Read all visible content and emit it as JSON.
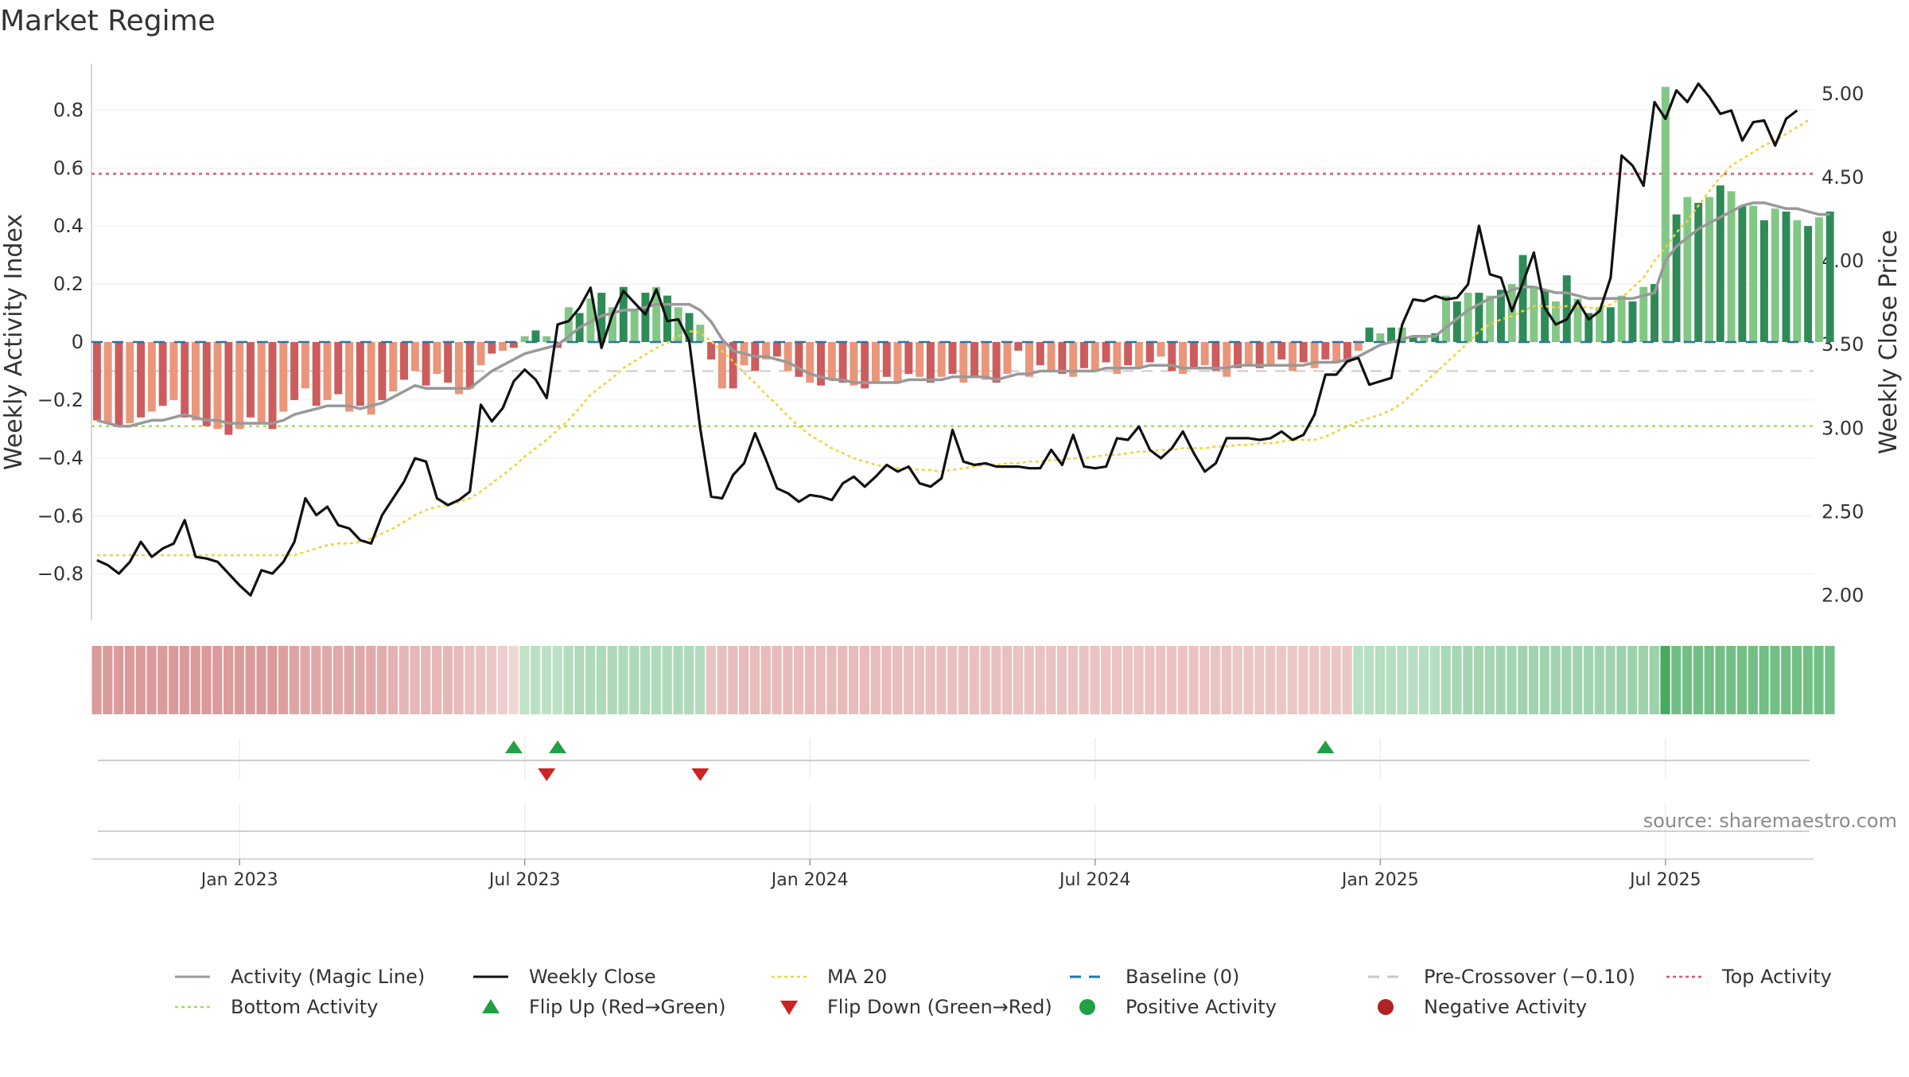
{
  "title": "Market Regime",
  "source_note": "source: sharemaestro.com",
  "colors": {
    "pos_dark": "#2e8b57",
    "pos_light": "#82c785",
    "neg_dark": "#cd5c5c",
    "neg_light": "#e9967a",
    "magic_line": "#999999",
    "close_line": "#111111",
    "ma_line": "#f0d23a",
    "baseline": "#1f77b4",
    "precross": "#c8c8c8",
    "top": "#e0566b",
    "bottom": "#a6d96a",
    "flip_up": "#22a045",
    "flip_down": "#cc2222"
  },
  "chart_data": {
    "type": "bar",
    "title": "Market Regime",
    "y_left_label": "Weekly Activity Index",
    "y_right_label": "Weekly Close Price",
    "y_left_range": [
      -0.96,
      0.96
    ],
    "y_right_range": [
      1.85,
      5.18
    ],
    "y_left_ticks": [
      "−0.8",
      "−0.6",
      "−0.4",
      "−0.2",
      "0",
      "0.2",
      "0.4",
      "0.6",
      "0.8"
    ],
    "y_right_ticks": [
      "2.00",
      "2.50",
      "3.00",
      "3.50",
      "4.00",
      "4.50",
      "5.00"
    ],
    "x_ticks": [
      "Jan 2023",
      "Jul 2023",
      "Jan 2024",
      "Jul 2024",
      "Jan 2025",
      "Jul 2025"
    ],
    "x_tick_weeks": [
      13,
      39,
      65,
      91,
      117,
      143
    ],
    "week_count": 157,
    "reference_lines": {
      "baseline": 0,
      "pre_crossover": -0.1,
      "top_activity": 0.58,
      "bottom_activity": -0.29
    },
    "series": [
      {
        "name": "Weekly Activity Index",
        "kind": "bar",
        "values": [
          -0.27,
          -0.28,
          -0.29,
          -0.28,
          -0.26,
          -0.24,
          -0.22,
          -0.2,
          -0.26,
          -0.27,
          -0.29,
          -0.3,
          -0.32,
          -0.3,
          -0.26,
          -0.28,
          -0.3,
          -0.24,
          -0.2,
          -0.16,
          -0.22,
          -0.2,
          -0.18,
          -0.24,
          -0.22,
          -0.25,
          -0.2,
          -0.17,
          -0.13,
          -0.1,
          -0.15,
          -0.11,
          -0.14,
          -0.18,
          -0.16,
          -0.08,
          -0.04,
          -0.03,
          -0.02,
          0.02,
          0.04,
          0.02,
          -0.02,
          0.12,
          0.1,
          0.15,
          0.17,
          0.12,
          0.19,
          0.11,
          0.17,
          0.19,
          0.16,
          0.12,
          0.1,
          0.06,
          -0.06,
          -0.16,
          -0.16,
          -0.08,
          -0.1,
          -0.06,
          -0.05,
          -0.1,
          -0.12,
          -0.14,
          -0.15,
          -0.13,
          -0.14,
          -0.15,
          -0.16,
          -0.14,
          -0.12,
          -0.14,
          -0.11,
          -0.12,
          -0.14,
          -0.12,
          -0.11,
          -0.14,
          -0.12,
          -0.13,
          -0.14,
          -0.11,
          -0.03,
          -0.12,
          -0.08,
          -0.1,
          -0.11,
          -0.12,
          -0.09,
          -0.1,
          -0.07,
          -0.11,
          -0.08,
          -0.09,
          -0.07,
          -0.05,
          -0.1,
          -0.11,
          -0.09,
          -0.08,
          -0.1,
          -0.12,
          -0.09,
          -0.08,
          -0.09,
          -0.08,
          -0.06,
          -0.1,
          -0.07,
          -0.09,
          -0.06,
          -0.07,
          -0.07,
          -0.03,
          0.05,
          0.03,
          0.05,
          0.05,
          0.02,
          0.02,
          0.03,
          0.16,
          0.14,
          0.17,
          0.17,
          0.16,
          0.18,
          0.2,
          0.3,
          0.19,
          0.18,
          0.14,
          0.23,
          0.15,
          0.1,
          0.12,
          0.12,
          0.16,
          0.14,
          0.19,
          0.2,
          0.88,
          0.44,
          0.5,
          0.48,
          0.5,
          0.54,
          0.52,
          0.47,
          0.47,
          0.42,
          0.46,
          0.45,
          0.42,
          0.4,
          0.43,
          0.45
        ]
      },
      {
        "name": "Activity (Magic Line)",
        "kind": "line",
        "values": [
          -0.27,
          -0.28,
          -0.29,
          -0.29,
          -0.28,
          -0.27,
          -0.27,
          -0.26,
          -0.25,
          -0.26,
          -0.27,
          -0.27,
          -0.28,
          -0.28,
          -0.28,
          -0.28,
          -0.28,
          -0.27,
          -0.25,
          -0.24,
          -0.23,
          -0.22,
          -0.22,
          -0.22,
          -0.23,
          -0.22,
          -0.21,
          -0.19,
          -0.17,
          -0.15,
          -0.16,
          -0.16,
          -0.16,
          -0.16,
          -0.16,
          -0.13,
          -0.1,
          -0.08,
          -0.06,
          -0.04,
          -0.03,
          -0.02,
          -0.01,
          0.02,
          0.05,
          0.07,
          0.09,
          0.1,
          0.11,
          0.11,
          0.12,
          0.13,
          0.13,
          0.13,
          0.13,
          0.11,
          0.07,
          0.01,
          -0.03,
          -0.04,
          -0.05,
          -0.05,
          -0.06,
          -0.07,
          -0.09,
          -0.11,
          -0.12,
          -0.13,
          -0.13,
          -0.14,
          -0.14,
          -0.14,
          -0.14,
          -0.14,
          -0.13,
          -0.13,
          -0.13,
          -0.13,
          -0.12,
          -0.12,
          -0.12,
          -0.12,
          -0.13,
          -0.12,
          -0.11,
          -0.11,
          -0.1,
          -0.1,
          -0.1,
          -0.1,
          -0.1,
          -0.1,
          -0.09,
          -0.09,
          -0.09,
          -0.09,
          -0.08,
          -0.08,
          -0.08,
          -0.09,
          -0.09,
          -0.09,
          -0.09,
          -0.09,
          -0.08,
          -0.08,
          -0.08,
          -0.08,
          -0.08,
          -0.08,
          -0.08,
          -0.07,
          -0.07,
          -0.07,
          -0.06,
          -0.05,
          -0.03,
          -0.01,
          0.0,
          0.01,
          0.02,
          0.02,
          0.02,
          0.05,
          0.08,
          0.11,
          0.13,
          0.15,
          0.16,
          0.18,
          0.19,
          0.19,
          0.18,
          0.17,
          0.17,
          0.16,
          0.15,
          0.15,
          0.15,
          0.15,
          0.15,
          0.16,
          0.17,
          0.28,
          0.33,
          0.36,
          0.39,
          0.41,
          0.43,
          0.45,
          0.47,
          0.48,
          0.48,
          0.47,
          0.46,
          0.46,
          0.45,
          0.44,
          0.44
        ]
      },
      {
        "name": "Weekly Close",
        "kind": "line",
        "axis": "right",
        "values": [
          2.21,
          2.18,
          2.13,
          2.2,
          2.32,
          2.23,
          2.28,
          2.31,
          2.45,
          2.23,
          2.22,
          2.2,
          2.13,
          2.06,
          2.0,
          2.15,
          2.13,
          2.2,
          2.32,
          2.58,
          2.48,
          2.53,
          2.42,
          2.4,
          2.33,
          2.31,
          2.48,
          2.58,
          2.68,
          2.82,
          2.8,
          2.58,
          2.54,
          2.57,
          2.62,
          3.14,
          3.04,
          3.12,
          3.28,
          3.35,
          3.29,
          3.18,
          3.62,
          3.64,
          3.72,
          3.84,
          3.48,
          3.68,
          3.82,
          3.75,
          3.68,
          3.83,
          3.64,
          3.65,
          3.52,
          3.0,
          2.59,
          2.58,
          2.72,
          2.79,
          2.97,
          2.81,
          2.64,
          2.61,
          2.56,
          2.6,
          2.59,
          2.57,
          2.67,
          2.71,
          2.65,
          2.71,
          2.78,
          2.74,
          2.77,
          2.67,
          2.65,
          2.7,
          2.99,
          2.8,
          2.78,
          2.79,
          2.77,
          2.77,
          2.77,
          2.76,
          2.76,
          2.87,
          2.78,
          2.96,
          2.77,
          2.76,
          2.77,
          2.94,
          2.93,
          3.01,
          2.87,
          2.82,
          2.88,
          2.98,
          2.85,
          2.74,
          2.79,
          2.94,
          2.94,
          2.94,
          2.93,
          2.94,
          2.98,
          2.93,
          2.96,
          3.08,
          3.32,
          3.32,
          3.4,
          3.42,
          3.26,
          3.28,
          3.3,
          3.62,
          3.77,
          3.76,
          3.79,
          3.77,
          3.78,
          3.86,
          4.21,
          3.92,
          3.9,
          3.7,
          3.87,
          4.05,
          3.72,
          3.62,
          3.65,
          3.76,
          3.65,
          3.7,
          3.9,
          4.63,
          4.57,
          4.45,
          4.95,
          4.85,
          5.02,
          4.95,
          5.06,
          4.98,
          4.88,
          4.9,
          4.72,
          4.83,
          4.84,
          4.69,
          4.85,
          4.9
        ]
      },
      {
        "name": "MA 20",
        "kind": "line",
        "axis": "right",
        "values": [
          2.24,
          2.24,
          2.24,
          2.24,
          2.24,
          2.24,
          2.24,
          2.24,
          2.24,
          2.24,
          2.24,
          2.24,
          2.24,
          2.24,
          2.24,
          2.24,
          2.24,
          2.24,
          2.24,
          2.26,
          2.28,
          2.3,
          2.31,
          2.31,
          2.32,
          2.34,
          2.37,
          2.4,
          2.44,
          2.48,
          2.51,
          2.53,
          2.54,
          2.56,
          2.58,
          2.62,
          2.67,
          2.72,
          2.77,
          2.83,
          2.88,
          2.93,
          2.99,
          3.05,
          3.12,
          3.2,
          3.25,
          3.3,
          3.36,
          3.4,
          3.44,
          3.48,
          3.51,
          3.55,
          3.58,
          3.57,
          3.52,
          3.46,
          3.4,
          3.33,
          3.27,
          3.2,
          3.14,
          3.07,
          3.01,
          2.96,
          2.92,
          2.88,
          2.85,
          2.82,
          2.8,
          2.78,
          2.77,
          2.76,
          2.76,
          2.75,
          2.75,
          2.74,
          2.75,
          2.76,
          2.77,
          2.78,
          2.78,
          2.79,
          2.79,
          2.8,
          2.8,
          2.81,
          2.81,
          2.82,
          2.82,
          2.83,
          2.84,
          2.84,
          2.85,
          2.86,
          2.86,
          2.87,
          2.87,
          2.88,
          2.88,
          2.88,
          2.89,
          2.89,
          2.9,
          2.9,
          2.91,
          2.91,
          2.92,
          2.93,
          2.93,
          2.93,
          2.95,
          2.98,
          3.01,
          3.04,
          3.06,
          3.08,
          3.11,
          3.15,
          3.21,
          3.27,
          3.33,
          3.39,
          3.45,
          3.51,
          3.58,
          3.62,
          3.65,
          3.67,
          3.7,
          3.73,
          3.73,
          3.72,
          3.73,
          3.73,
          3.72,
          3.72,
          3.74,
          3.78,
          3.84,
          3.9,
          4.0,
          4.08,
          4.17,
          4.24,
          4.33,
          4.42,
          4.5,
          4.57,
          4.61,
          4.65,
          4.69,
          4.72,
          4.76,
          4.8,
          4.84
        ]
      }
    ],
    "regime_strip_values": [
      -0.3,
      -0.3,
      -0.3,
      -0.3,
      -0.3,
      -0.3,
      -0.3,
      -0.3,
      -0.3,
      -0.3,
      -0.3,
      -0.3,
      -0.3,
      -0.3,
      -0.3,
      -0.3,
      -0.3,
      -0.28,
      -0.26,
      -0.24,
      -0.24,
      -0.24,
      -0.24,
      -0.24,
      -0.24,
      -0.24,
      -0.22,
      -0.2,
      -0.18,
      -0.18,
      -0.18,
      -0.18,
      -0.18,
      -0.16,
      -0.14,
      -0.12,
      -0.1,
      -0.08,
      -0.04,
      0.04,
      0.06,
      0.05,
      0.05,
      0.1,
      0.12,
      0.12,
      0.12,
      0.12,
      0.12,
      0.12,
      0.12,
      0.12,
      0.12,
      0.12,
      0.12,
      0.1,
      -0.12,
      -0.14,
      -0.15,
      -0.15,
      -0.15,
      -0.15,
      -0.15,
      -0.15,
      -0.15,
      -0.15,
      -0.15,
      -0.15,
      -0.15,
      -0.15,
      -0.15,
      -0.15,
      -0.15,
      -0.15,
      -0.14,
      -0.14,
      -0.14,
      -0.14,
      -0.14,
      -0.14,
      -0.14,
      -0.14,
      -0.14,
      -0.14,
      -0.13,
      -0.13,
      -0.13,
      -0.13,
      -0.13,
      -0.13,
      -0.12,
      -0.12,
      -0.12,
      -0.12,
      -0.12,
      -0.12,
      -0.12,
      -0.12,
      -0.12,
      -0.12,
      -0.12,
      -0.12,
      -0.12,
      -0.12,
      -0.11,
      -0.11,
      -0.11,
      -0.11,
      -0.11,
      -0.11,
      -0.11,
      -0.11,
      -0.11,
      -0.11,
      -0.11,
      0.06,
      0.07,
      0.08,
      0.08,
      0.08,
      0.08,
      0.08,
      0.08,
      0.14,
      0.15,
      0.16,
      0.16,
      0.16,
      0.17,
      0.17,
      0.18,
      0.18,
      0.18,
      0.18,
      0.18,
      0.18,
      0.18,
      0.18,
      0.18,
      0.2,
      0.2,
      0.2,
      0.2,
      0.6,
      0.4,
      0.4,
      0.4,
      0.4,
      0.4,
      0.4,
      0.4,
      0.4,
      0.4,
      0.4,
      0.4,
      0.4,
      0.4,
      0.4,
      0.4
    ],
    "flip_up_weeks": [
      38,
      42,
      112
    ],
    "flip_down_weeks": [
      41,
      55
    ],
    "legend": [
      {
        "label": "Activity (Magic Line)",
        "marker": "line",
        "color": "#999999"
      },
      {
        "label": "Weekly Close",
        "marker": "line",
        "color": "#111111"
      },
      {
        "label": "MA 20",
        "marker": "dotted",
        "color": "#f0d23a"
      },
      {
        "label": "Baseline (0)",
        "marker": "dashed",
        "color": "#1f77b4"
      },
      {
        "label": "Pre-Crossover (−0.10)",
        "marker": "dashed",
        "color": "#c8c8c8"
      },
      {
        "label": "Top Activity",
        "marker": "dotted",
        "color": "#e0566b"
      },
      {
        "label": "Bottom Activity",
        "marker": "dotted",
        "color": "#a6d96a"
      },
      {
        "label": "Flip Up (Red→Green)",
        "marker": "tri-up",
        "color": "#22a045"
      },
      {
        "label": "Flip Down (Green→Red)",
        "marker": "tri-down",
        "color": "#cc2222"
      },
      {
        "label": "Positive Activity",
        "marker": "circle",
        "color": "#22a045"
      },
      {
        "label": "Negative Activity",
        "marker": "circle",
        "color": "#b22222"
      }
    ]
  }
}
